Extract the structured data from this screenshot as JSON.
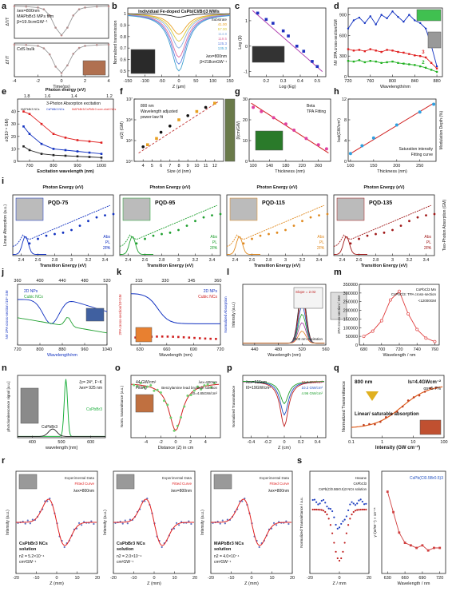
{
  "chart_data": [
    {
      "id": "a",
      "type": "line",
      "panel": "a",
      "sub": [
        {
          "title_lines": [
            "λex=800nm",
            "MAPbBr3 MPs film",
            "β=19.9cmGW⁻¹"
          ],
          "ylabel": "ΔT/T",
          "xlim": [
            -4,
            4
          ],
          "ylim": [
            -1.05,
            0.05
          ],
          "x": [
            -4,
            -3,
            -2,
            -1.5,
            -1,
            -0.5,
            0,
            0.5,
            1,
            1.5,
            2,
            3,
            4
          ],
          "y": [
            0,
            -0.01,
            -0.04,
            -0.1,
            -0.3,
            -0.7,
            -0.95,
            -0.7,
            -0.3,
            -0.1,
            -0.04,
            -0.01,
            0
          ]
        },
        {
          "title_lines": [
            "CdS bulk"
          ],
          "ylabel": "ΔT/T",
          "xlabel": "Time(ps)",
          "xlim": [
            -4,
            4
          ],
          "ylim": [
            -1.05,
            0.05
          ],
          "x": [
            -4,
            -3,
            -2,
            -1.5,
            -1,
            -0.5,
            0,
            0.5,
            1,
            1.5,
            2,
            3,
            4
          ],
          "y": [
            0,
            -0.01,
            -0.04,
            -0.12,
            -0.32,
            -0.72,
            -0.93,
            -0.68,
            -0.3,
            -0.11,
            -0.04,
            -0.01,
            0
          ]
        }
      ]
    },
    {
      "id": "b",
      "type": "line",
      "panel": "b",
      "title": "Individual Fe-doped CsPb(Cl/Br)3 MWs",
      "xlabel": "Z (μm)",
      "ylabel": "Normalized transmission",
      "xlim": [
        -150,
        150
      ],
      "ylim": [
        0.45,
        1.05
      ],
      "annot_lines": [
        "λex=800nm",
        "β=218cmGW⁻¹"
      ],
      "legend_title": "Substrate",
      "series": [
        {
          "name": "Substrate",
          "color": "#222222",
          "depth": 0.03
        },
        {
          "name": "41.00",
          "color": "#e8a020",
          "depth": 0.18
        },
        {
          "name": "57.00",
          "color": "#d8c83a",
          "depth": 0.24
        },
        {
          "name": "114.8",
          "color": "#8ab0e0",
          "depth": 0.3
        },
        {
          "name": "119.5",
          "color": "#e070a0",
          "depth": 0.38
        },
        {
          "name": "125.3",
          "color": "#6080e0",
          "depth": 0.44
        },
        {
          "name": "135.3",
          "color": "#40a0d0",
          "depth": 0.5
        }
      ]
    },
    {
      "id": "c",
      "type": "scatter",
      "panel": "c",
      "xlabel": "Log (Eg)",
      "ylabel": "Log (β)",
      "xlim": [
        0.1,
        0.55
      ],
      "ylim": [
        -1.2,
        1.5
      ],
      "x": [
        0.15,
        0.2,
        0.24,
        0.3,
        0.33,
        0.38,
        0.42,
        0.47,
        0.5
      ],
      "y": [
        1.3,
        1.05,
        0.9,
        0.6,
        0.4,
        0.0,
        -0.2,
        -0.6,
        -0.8
      ],
      "fit": [
        [
          0.12,
          1.4
        ],
        [
          0.53,
          -1.0
        ]
      ]
    },
    {
      "id": "d",
      "type": "line",
      "panel": "d",
      "xlabel": "Wavelength/nm",
      "ylabel": "NV 2PA cross-section/GM",
      "xlim": [
        720,
        890
      ],
      "ylim": [
        0,
        1000
      ],
      "xticks": [
        720,
        760,
        800,
        840,
        880
      ],
      "yticks": [
        0,
        300,
        600,
        900
      ],
      "series": [
        {
          "name": "1",
          "color": "#1030c0",
          "x": [
            720,
            730,
            740,
            750,
            760,
            770,
            780,
            790,
            800,
            810,
            820,
            830,
            840,
            850,
            860,
            870,
            880
          ],
          "y": [
            700,
            820,
            860,
            780,
            880,
            760,
            900,
            850,
            950,
            870,
            800,
            900,
            820,
            780,
            700,
            450,
            150
          ]
        },
        {
          "name": "3",
          "color": "#e02020",
          "x": [
            720,
            730,
            740,
            750,
            760,
            770,
            780,
            790,
            800,
            810,
            820,
            830,
            840,
            850,
            860,
            870,
            880
          ],
          "y": [
            400,
            380,
            390,
            370,
            400,
            380,
            360,
            390,
            380,
            360,
            350,
            330,
            310,
            300,
            280,
            200,
            120
          ]
        },
        {
          "name": "2",
          "color": "#20b020",
          "x": [
            720,
            730,
            740,
            750,
            760,
            770,
            780,
            790,
            800,
            810,
            820,
            830,
            840,
            850,
            860,
            870,
            880
          ],
          "y": [
            230,
            220,
            240,
            210,
            230,
            220,
            200,
            210,
            220,
            200,
            190,
            180,
            170,
            150,
            130,
            100,
            70
          ]
        }
      ]
    },
    {
      "id": "e",
      "type": "line",
      "panel": "e",
      "title": "3-Photon Absorption excitation",
      "xtop_label": "Photon energy (eV)",
      "xtop_ticks": [
        1.8,
        1.6,
        1.4,
        1.2
      ],
      "xlabel": "Excitation wavelength (nm)",
      "ylabel": "σ3(10⁻⁸ GM)",
      "xlim": [
        650,
        1050
      ],
      "ylim": [
        0,
        50
      ],
      "xticks": [
        700,
        800,
        900,
        1000
      ],
      "yticks": [
        0,
        10,
        20,
        30,
        40
      ],
      "series": [
        {
          "name": "MAPbBr3 NCs",
          "color": "#222222",
          "x": [
            675,
            700,
            750,
            800,
            850,
            900,
            950,
            1000
          ],
          "y": [
            12,
            9,
            6,
            5,
            4.5,
            4,
            3.5,
            3
          ]
        },
        {
          "name": "CsPbBr3 NCs",
          "color": "#1030c0",
          "x": [
            675,
            700,
            750,
            800,
            850,
            900,
            950,
            1000
          ],
          "y": [
            28,
            22,
            14,
            10,
            9,
            8,
            7,
            6
          ]
        },
        {
          "name": "MAPbBr3/CsPbBr3 core-shell NCs",
          "color": "#e02020",
          "x": [
            675,
            700,
            750,
            800,
            850,
            900,
            950,
            1000
          ],
          "y": [
            40,
            38,
            30,
            22,
            19,
            17,
            16,
            15
          ]
        }
      ]
    },
    {
      "id": "f",
      "type": "scatter",
      "panel": "f",
      "xlabel": "Size (d (nm)",
      "ylabel": "σ(2) (GM)",
      "xlim": [
        3,
        13
      ],
      "ylim": [
        4,
        7
      ],
      "xticks": [
        4,
        5,
        6,
        7,
        8,
        9,
        10,
        11,
        12
      ],
      "ytick_labels": [
        "10⁴",
        "10⁵",
        "10⁶",
        "10⁷"
      ],
      "legend": [
        "800 nm",
        "Wavelength adjusted",
        "power-law fit"
      ],
      "series": [
        {
          "name": "800 nm",
          "color": "#111111",
          "x": [
            4,
            6,
            7,
            9,
            11
          ],
          "y": [
            4.7,
            5.4,
            5.7,
            6.2,
            6.6
          ]
        },
        {
          "name": "Wavelength adjusted",
          "color": "#e8a020",
          "x": [
            4.5,
            5.5,
            8,
            10,
            12
          ],
          "y": [
            4.8,
            5.1,
            6,
            6.4,
            6.8
          ]
        }
      ],
      "fit": [
        [
          3.5,
          4.4
        ],
        [
          12.5,
          6.9
        ]
      ]
    },
    {
      "id": "g",
      "type": "scatter",
      "panel": "g",
      "xlabel": "Thickness (nm)",
      "ylabel": "β(cm/GW)",
      "xlim": [
        90,
        290
      ],
      "ylim": [
        0,
        30
      ],
      "xticks": [
        100,
        120,
        140,
        160,
        180,
        200,
        220,
        240,
        260,
        280
      ],
      "legend": [
        "Beta",
        "TPA Fitting"
      ],
      "x": [
        100,
        120,
        150,
        180,
        200,
        230,
        260,
        280
      ],
      "y": [
        26,
        24,
        21,
        18,
        15,
        11,
        8,
        6
      ],
      "fit": [
        [
          95,
          28
        ],
        [
          285,
          4
        ]
      ]
    },
    {
      "id": "h",
      "type": "scatter",
      "panel": "h",
      "xlabel": "Thickness (nm)",
      "ylabel": "Isat(GW/cm²)",
      "ylabel2": "Modulation Depth (%)",
      "xlim": [
        95,
        285
      ],
      "ylim": [
        0,
        12
      ],
      "xticks": [
        100,
        150,
        200,
        250
      ],
      "legend": [
        "Saturation intensity",
        "Fitting curve"
      ],
      "x": [
        100,
        125,
        150,
        200,
        250,
        280
      ],
      "y": [
        1.5,
        3,
        4.5,
        7,
        9.5,
        11
      ],
      "fit": [
        [
          100,
          1.5
        ],
        [
          280,
          11.2
        ]
      ]
    },
    {
      "id": "i",
      "type": "line",
      "panel": "i",
      "xtop_label": "Photon Energy (eV)",
      "xlabel": "Transition Energy (eV)",
      "ylabel": "Linear Absorption (a.u.)",
      "ylabel2": "Two-Photon Absorption (GM)",
      "xlim": [
        2.3,
        3.5
      ],
      "legend": [
        "Abs",
        "PL",
        "2PA"
      ],
      "sub": [
        {
          "label": "PQD-75",
          "color": "#1030c0"
        },
        {
          "label": "PQD-95",
          "color": "#20a030"
        },
        {
          "label": "PQD-115",
          "color": "#e08a20"
        },
        {
          "label": "PQD-135",
          "color": "#a01818"
        }
      ]
    },
    {
      "id": "j",
      "type": "line",
      "panel": "j",
      "xtop_label": "Wavelength/nm",
      "xtop_ticks": [
        360,
        400,
        440,
        480,
        520
      ],
      "xlabel": "Wavelength/nm",
      "ylabel": "NV 2PA cross-section /10⁶ GM",
      "xlim": [
        720,
        1040
      ],
      "xticks": [
        720,
        800,
        880,
        960,
        1040
      ],
      "legend": [
        "2D NPs",
        "Cubic NCs"
      ]
    },
    {
      "id": "k",
      "type": "line",
      "panel": "k",
      "xtop_ticks": [
        315,
        330,
        345,
        360
      ],
      "xlabel": "Wavelength (nm)",
      "ylabel": "2PA cross-section/10⁶GM",
      "ylabel2": "Normalized Absorption",
      "xlim": [
        620,
        720
      ],
      "xticks": [
        630,
        660,
        690,
        720
      ],
      "legend": [
        "2D NPs",
        "Cubic NCs"
      ]
    },
    {
      "id": "l",
      "type": "line",
      "panel": "l",
      "xlabel": "Wavelength (nm)",
      "ylabel": "Intensity (a.u.)",
      "annot": "800 nm excitation",
      "annot2": "Slope = 2.02",
      "xlim": [
        420,
        560
      ],
      "xticks": [
        440,
        480,
        520,
        560
      ]
    },
    {
      "id": "m",
      "type": "line",
      "panel": "m",
      "xlabel": "Wavelength / nm",
      "ylabel": "2PA Cross-section / GM",
      "xlim": [
        675,
        765
      ],
      "ylim": [
        0,
        350000
      ],
      "xticks": [
        680,
        700,
        720,
        740,
        760
      ],
      "ytick_labels": [
        "0",
        "50000",
        "100000",
        "150000",
        "200000",
        "250000",
        "300000",
        "350000"
      ],
      "legend": [
        "CsPbCl3 Mn",
        "CsPbCl3: TPA cross-section"
      ],
      "annot": "<12000GM",
      "x": [
        680,
        690,
        700,
        710,
        720,
        730,
        740,
        750,
        760
      ],
      "y": [
        50000,
        80000,
        140000,
        260000,
        310000,
        180000,
        90000,
        40000,
        20000
      ]
    },
    {
      "id": "n",
      "type": "line",
      "panel": "n",
      "xlabel": "wavelength [nm]",
      "ylabel": "photoluminescence signal [a.u.]",
      "annot_lines": [
        "ζc= 24°, F~K",
        "λex= 925 nm"
      ],
      "xlim": [
        350,
        650
      ],
      "xticks": [
        400,
        500,
        600
      ],
      "series_labels": [
        "CsPbBr3",
        "CsPbBr3"
      ]
    },
    {
      "id": "o",
      "type": "scatter",
      "panel": "o",
      "xlabel": "Distance (Z) in cm",
      "ylabel": "Norm. transmittance (a.u.)",
      "legend": [
        "44 GW/cm²",
        "Fitting"
      ],
      "annot_lines": [
        "λex=800nm",
        "Benzylamine lead bromide solution",
        "I0=4.85GW/cm²"
      ],
      "xlim": [
        -6,
        6
      ],
      "ylim": [
        0.85,
        1.02
      ],
      "xticks": [
        -4,
        -2,
        0,
        2,
        4
      ]
    },
    {
      "id": "p",
      "type": "line",
      "panel": "p",
      "xlabel": "Z (cm)",
      "ylabel": "Normalized Transmittance",
      "annot_lines": [
        "λex=515nm",
        "I0=19GW/cm²"
      ],
      "legend": [
        "19.6 GW/cm²",
        "10.2 GW/cm²",
        "4.96 GW/cm²"
      ],
      "xlim": [
        -0.5,
        0.5
      ],
      "xticks": [
        -0.4,
        -0.2,
        0.0,
        0.2,
        0.4
      ]
    },
    {
      "id": "q",
      "type": "line",
      "panel": "q",
      "xlabel": "Intensity (GW cm⁻²)",
      "ylabel": "Normalized Transmittance",
      "annot_lines": [
        "800 nm",
        "Is=4.4GWcm⁻²",
        "αs=5.7%",
        "Linear/ saturable absorption"
      ],
      "xlim_log": [
        -1,
        2
      ],
      "xtick_labels": [
        "0.1",
        "1",
        "10",
        "100"
      ]
    },
    {
      "id": "r",
      "type": "line",
      "panel": "r",
      "sub": [
        {
          "legend": [
            "Experimental Data",
            "Fitted Curve"
          ],
          "annot_lines": [
            "λex=800nm"
          ],
          "sample": [
            "CsPbBr3 NCs",
            "solution"
          ],
          "n2": [
            "n2 = 5.2×10⁻⁴",
            "cm²GW⁻¹"
          ]
        },
        {
          "legend": [
            "Experimental Data",
            "Fitted Curve"
          ],
          "annot_lines": [
            "λex=800nm"
          ],
          "sample": [
            "CsPbBr3 NCs",
            "solution"
          ],
          "n2": [
            "n2 = 2.0×10⁻⁴",
            "cm²GW⁻¹"
          ]
        },
        {
          "legend": [
            "Experimental Data",
            "Fitted Curve"
          ],
          "annot_lines": [
            "λex=800nm"
          ],
          "sample": [
            "MAPbBr3 NCs",
            "solution"
          ],
          "n2": [
            "n2 = 4.0×10⁻⁴",
            "cm²GW⁻¹"
          ]
        }
      ],
      "xlabel": "Z (mm)",
      "ylabel": "Intensity (a.u.)",
      "xlim": [
        -20,
        20
      ]
    },
    {
      "id": "s",
      "type": "line",
      "panel": "s",
      "sub": [
        {
          "legend": [
            "Hexane",
            "CsPbCl3",
            "CsPb(Cl0.5Br0.5)3 NCs solution"
          ],
          "xlabel": "Z / mm",
          "ylabel": "Normalized Transmittance / a.u."
        },
        {
          "title": "CsPb(Cl0.5Br0.5)3",
          "xlabel": "Wavelength / nm",
          "ylabel": "γ /(m²W⁻¹) × 10⁻¹⁸",
          "xticks": [
            630,
            660,
            690,
            720
          ]
        }
      ]
    }
  ],
  "panel_letters": [
    "a",
    "b",
    "c",
    "d",
    "e",
    "f",
    "g",
    "h",
    "i",
    "j",
    "k",
    "l",
    "m",
    "n",
    "o",
    "p",
    "q",
    "r",
    "s"
  ]
}
